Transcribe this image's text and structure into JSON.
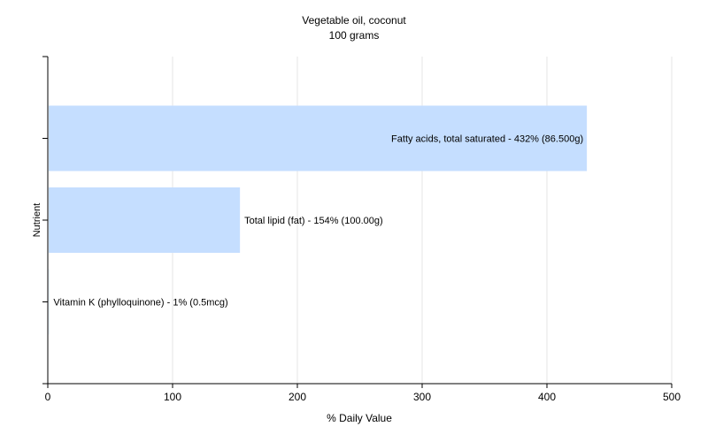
{
  "chart_data": {
    "type": "bar",
    "orientation": "horizontal",
    "title": "Vegetable oil, coconut",
    "subtitle": "100 grams",
    "xlabel": "% Daily Value",
    "ylabel": "Nutrient",
    "xlim": [
      0,
      500
    ],
    "xticks": [
      0,
      100,
      200,
      300,
      400,
      500
    ],
    "grid": true,
    "legend": "none",
    "bar_color": "#c5deff",
    "categories": [
      "Fatty acids, total saturated",
      "Total lipid (fat)",
      "Vitamin K (phylloquinone)"
    ],
    "values": [
      432,
      154,
      1
    ],
    "data_labels": [
      "Fatty acids, total saturated - 432% (86.500g)",
      "Total lipid (fat) - 154% (100.00g)",
      "Vitamin K (phylloquinone) - 1% (0.5mcg)"
    ]
  }
}
